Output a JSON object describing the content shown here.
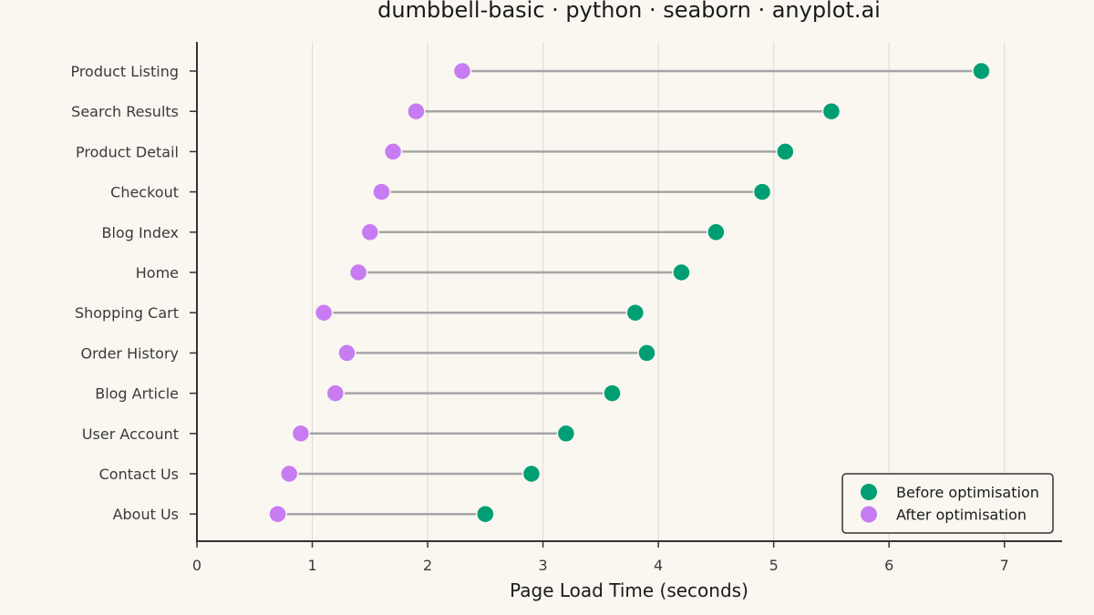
{
  "chart_data": {
    "type": "dumbbell",
    "title": "dumbbell-basic · python · seaborn · anyplot.ai",
    "xlabel": "Page Load Time (seconds)",
    "ylabel": "",
    "xlim": [
      0,
      7.5
    ],
    "xticks": [
      0,
      1,
      2,
      3,
      4,
      5,
      6,
      7
    ],
    "grid": "vertical",
    "legend_position": "bottom-right",
    "categories": [
      "Product Listing",
      "Search Results",
      "Product Detail",
      "Checkout",
      "Blog Index",
      "Home",
      "Shopping Cart",
      "Order History",
      "Blog Article",
      "User Account",
      "Contact Us",
      "About Us"
    ],
    "series": [
      {
        "name": "Before optimisation",
        "color": "#009E73",
        "values": [
          6.8,
          5.5,
          5.1,
          4.9,
          4.5,
          4.2,
          3.8,
          3.9,
          3.6,
          3.2,
          2.9,
          2.5
        ]
      },
      {
        "name": "After optimisation",
        "color": "#C77CF2",
        "values": [
          2.3,
          1.9,
          1.7,
          1.6,
          1.5,
          1.4,
          1.1,
          1.3,
          1.2,
          0.9,
          0.8,
          0.7
        ]
      }
    ],
    "connector_color": "#A5A5A5"
  }
}
